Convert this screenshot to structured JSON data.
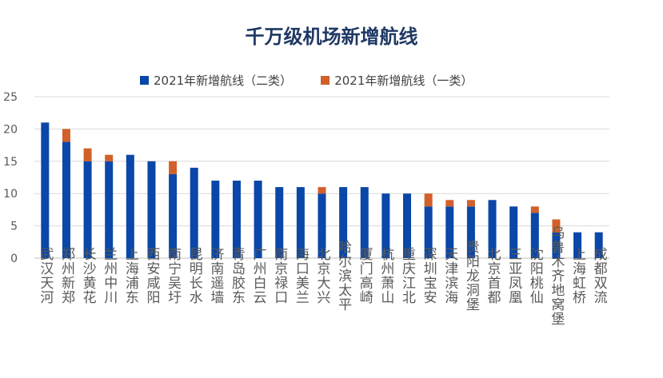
{
  "colors": {
    "series1": "#0a47a8",
    "series2": "#d2602a",
    "grid": "#d9d9d9",
    "axis_text": "#595959"
  },
  "chart_data": {
    "type": "bar",
    "stacked": true,
    "title": "千万级机场新增航线",
    "legend_position": "top",
    "grid": true,
    "ylim": [
      0,
      25
    ],
    "yticks": [
      0,
      5,
      10,
      15,
      20,
      25
    ],
    "categories": [
      "武汉天河",
      "郑州新郑",
      "长沙黄花",
      "兰州中川",
      "上海浦东",
      "西安咸阳",
      "南宁吴圩",
      "昆明长水",
      "济南遥墙",
      "青岛胶东",
      "广州白云",
      "南京禄口",
      "海口美兰",
      "北京大兴",
      "哈尔滨太平",
      "厦门高崎",
      "杭州萧山",
      "重庆江北",
      "深圳宝安",
      "天津滨海",
      "贵阳龙洞堡",
      "北京首都",
      "三亚凤凰",
      "沈阳桃仙",
      "乌鲁木齐地窝堡",
      "上海虹桥",
      "成都双流"
    ],
    "series": [
      {
        "name": "2021年新增航线（二类）",
        "values": [
          21,
          18,
          15,
          15,
          16,
          15,
          13,
          14,
          12,
          12,
          12,
          11,
          11,
          10,
          11,
          11,
          10,
          10,
          8,
          8,
          8,
          9,
          8,
          7,
          4,
          4,
          4
        ]
      },
      {
        "name": "2021年新增航线（一类）",
        "values": [
          0,
          2,
          2,
          1,
          0,
          0,
          2,
          0,
          0,
          0,
          0,
          0,
          0,
          1,
          0,
          0,
          0,
          0,
          2,
          1,
          1,
          0,
          0,
          1,
          2,
          0,
          0
        ]
      }
    ]
  }
}
